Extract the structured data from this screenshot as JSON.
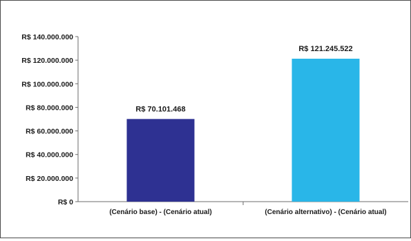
{
  "chart_data": {
    "type": "bar",
    "categories": [
      "(Cenário base) - (Cenário atual)",
      "(Cenário alternativo) - (Cenário atual)"
    ],
    "values": [
      70101468,
      121245522
    ],
    "data_labels": [
      "R$ 70.101.468",
      "R$ 121.245.522"
    ],
    "bar_colors": [
      "#2e3192",
      "#29b6e8"
    ],
    "ylim": [
      0,
      140000000
    ],
    "y_ticks": [
      0,
      20000000,
      40000000,
      60000000,
      80000000,
      100000000,
      120000000,
      140000000
    ],
    "y_tick_labels": [
      "R$ 0",
      "R$ 20.000.000",
      "R$ 40.000.000",
      "R$ 60.000.000",
      "R$ 80.000.000",
      "R$ 100.000.000",
      "R$ 120.000.000",
      "R$ 140.000.000"
    ],
    "grid": false,
    "legend": "none"
  }
}
